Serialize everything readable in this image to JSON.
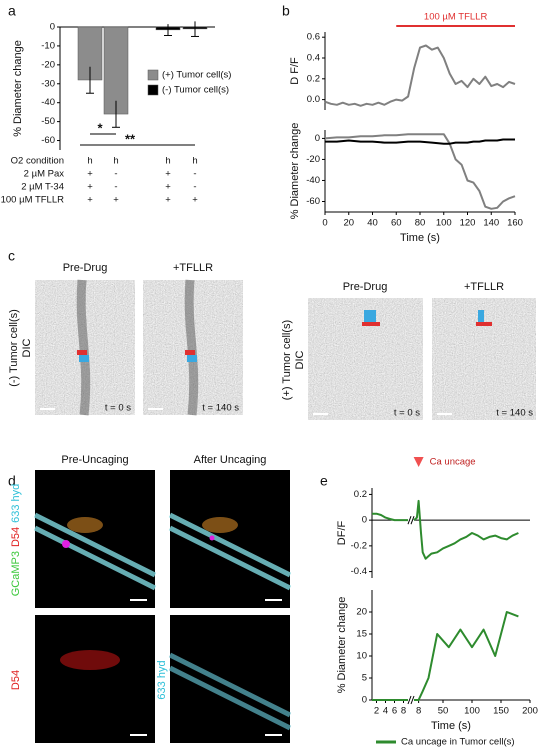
{
  "panel_labels": [
    "a",
    "b",
    "c",
    "d",
    "e"
  ],
  "chart_data": [
    {
      "type": "bar",
      "ylabel": "% Diameter change",
      "categories": [
        null,
        null,
        null,
        null
      ],
      "ylim": [
        -65,
        0
      ],
      "yticks": [
        0,
        -10,
        -20,
        -30,
        -40,
        -50,
        -60
      ],
      "series": [
        {
          "name": "(+) Tumor cell(s)",
          "color": "#8c8c8c",
          "values": [
            -28,
            -46,
            null,
            null
          ],
          "errors": [
            7,
            7,
            null,
            null
          ]
        },
        {
          "name": "(-) Tumor cell(s)",
          "color": "#000000",
          "values": [
            null,
            null,
            -1.5,
            -1
          ],
          "errors": [
            null,
            null,
            3,
            4
          ]
        }
      ],
      "annotations": [
        {
          "text": "*"
        },
        {
          "text": "**"
        }
      ]
    },
    {
      "type": "line",
      "ylabel": "D F/F",
      "x": [
        0,
        5,
        10,
        15,
        20,
        25,
        30,
        35,
        40,
        45,
        50,
        55,
        60,
        65,
        70,
        75,
        80,
        85,
        90,
        95,
        100,
        105,
        110,
        115,
        120,
        125,
        130,
        135,
        140,
        145,
        150,
        155,
        160
      ],
      "xlim": [
        0,
        160
      ],
      "ylim": [
        -0.1,
        0.65
      ],
      "yticks": [
        {
          "value": 0,
          "label": "0.0"
        },
        {
          "value": 0.2,
          "label": "0.2"
        },
        {
          "value": 0.4,
          "label": "0.4"
        },
        {
          "value": 0.6,
          "label": "0.6"
        }
      ],
      "series": [
        {
          "color": "#808080",
          "values": [
            -0.02,
            -0.04,
            -0.05,
            -0.03,
            -0.05,
            -0.04,
            -0.06,
            -0.04,
            -0.05,
            -0.03,
            -0.05,
            -0.02,
            0.0,
            -0.01,
            0.03,
            0.3,
            0.5,
            0.52,
            0.48,
            0.5,
            0.4,
            0.25,
            0.15,
            0.18,
            0.12,
            0.2,
            0.15,
            0.22,
            0.13,
            0.15,
            0.12,
            0.17,
            0.15
          ]
        }
      ],
      "annotations": [
        {
          "text": "100 µM TFLLR",
          "x": [
            60,
            160
          ],
          "color": "#e03030"
        }
      ]
    },
    {
      "type": "line",
      "ylabel": "% Diameter change",
      "xlabel": "Time (s)",
      "x": [
        0,
        10,
        20,
        30,
        40,
        50,
        60,
        70,
        80,
        90,
        100,
        105,
        110,
        115,
        120,
        125,
        130,
        135,
        140,
        145,
        150,
        155,
        160
      ],
      "xlim": [
        0,
        160
      ],
      "xticks": [
        0,
        20,
        40,
        60,
        80,
        100,
        120,
        140,
        160
      ],
      "ylim": [
        -70,
        8
      ],
      "yticks": [
        0,
        -20,
        -40,
        -60
      ],
      "series": [
        {
          "color": "#808080",
          "values": [
            0,
            1,
            1,
            2,
            2,
            3,
            3,
            4,
            4,
            4,
            4,
            -5,
            -20,
            -25,
            -40,
            -42,
            -50,
            -65,
            -67,
            -66,
            -60,
            -57,
            -55
          ]
        },
        {
          "color": "#000000",
          "values": [
            -3,
            -3,
            -2,
            -3,
            -3,
            -4,
            -4,
            -3,
            -3,
            -4,
            -5,
            -5,
            -4,
            -4,
            -4,
            -3,
            -3,
            -2,
            -2,
            -2,
            -1,
            -1,
            -1
          ]
        }
      ]
    },
    {
      "type": "line",
      "ylabel": "DF/F",
      "segments": [
        {
          "xlim": [
            1,
            9
          ]
        },
        {
          "xlim": [
            0,
            200
          ]
        }
      ],
      "ylim": [
        -0.45,
        0.25
      ],
      "yticks": [
        0.2,
        0,
        -0.2,
        -0.4
      ],
      "series": [
        {
          "segment": 0,
          "color": "#2e8b2e",
          "x": [
            1,
            2,
            3,
            4,
            5,
            6,
            7,
            8,
            9
          ],
          "values": [
            0.05,
            0.05,
            0.04,
            0.02,
            0.01,
            0.0,
            0.0,
            0.0,
            0.0
          ]
        },
        {
          "segment": 1,
          "color": "#2e8b2e",
          "x": [
            0,
            5,
            8,
            12,
            15,
            20,
            25,
            30,
            40,
            50,
            60,
            70,
            80,
            90,
            100,
            110,
            120,
            130,
            140,
            150,
            160,
            170,
            180
          ],
          "values": [
            0.0,
            0.02,
            0.15,
            -0.1,
            -0.25,
            -0.3,
            -0.28,
            -0.26,
            -0.25,
            -0.22,
            -0.2,
            -0.18,
            -0.15,
            -0.13,
            -0.1,
            -0.12,
            -0.15,
            -0.13,
            -0.12,
            -0.14,
            -0.15,
            -0.12,
            -0.1
          ]
        }
      ],
      "annotations": [
        {
          "text": "Ca uncage",
          "x": 8,
          "segment": 1,
          "color": "#f05050"
        }
      ]
    },
    {
      "type": "line",
      "ylabel": "% Diameter change",
      "xlabel": "Time (s)",
      "segments": [
        {
          "xlim": [
            1,
            9
          ],
          "xticks": [
            2,
            4,
            6,
            8
          ]
        },
        {
          "xlim": [
            0,
            200
          ],
          "xticks": [
            8,
            50,
            100,
            150,
            200
          ]
        }
      ],
      "ylim": [
        0,
        25
      ],
      "yticks": [
        0,
        5,
        10,
        15,
        20
      ],
      "legend": "Ca uncage in Tumor cell(s)",
      "color": "#2e8b2e",
      "series": [
        {
          "segment": 0,
          "color": "#2e8b2e",
          "x": [
            1,
            3,
            5,
            7,
            9
          ],
          "values": [
            0,
            0,
            0,
            0,
            0
          ]
        },
        {
          "segment": 1,
          "color": "#2e8b2e",
          "x": [
            0,
            8,
            15,
            25,
            40,
            60,
            80,
            100,
            120,
            140,
            160,
            180
          ],
          "values": [
            0,
            0,
            2,
            5,
            15,
            12,
            16,
            12,
            16,
            10,
            20,
            19
          ]
        }
      ]
    }
  ],
  "conditions": {
    "rows": [
      {
        "label": "O2 condition",
        "values": [
          "h",
          "h",
          "h",
          "h"
        ]
      },
      {
        "label": "2 µM Pax",
        "values": [
          "+",
          "-",
          "+",
          "-"
        ]
      },
      {
        "label": "2 µM T-34",
        "values": [
          "+",
          "-",
          "+",
          "-"
        ]
      },
      {
        "label": "100 µM TFLLR",
        "values": [
          "+",
          "+",
          "+",
          "+"
        ]
      }
    ]
  },
  "panel_c": {
    "groups": [
      {
        "label": "(-) Tumor cell(s)",
        "modality": "DIC",
        "columns": [
          "Pre-Drug",
          "+TFLLR"
        ],
        "timestamps": [
          "t = 0 s",
          "t = 140 s"
        ]
      },
      {
        "label": "(+) Tumor cell(s)",
        "modality": "DIC",
        "columns": [
          "Pre-Drug",
          "+TFLLR"
        ],
        "timestamps": [
          "t = 0 s",
          "t = 140 s"
        ]
      }
    ]
  },
  "panel_d": {
    "columns": [
      "Pre-Uncaging",
      "After Uncaging"
    ],
    "top_labels": [
      "GCaMP3",
      "D54",
      "633 hyd"
    ],
    "bottom_left_label": "D54",
    "bottom_right_label": "633 hyd"
  }
}
